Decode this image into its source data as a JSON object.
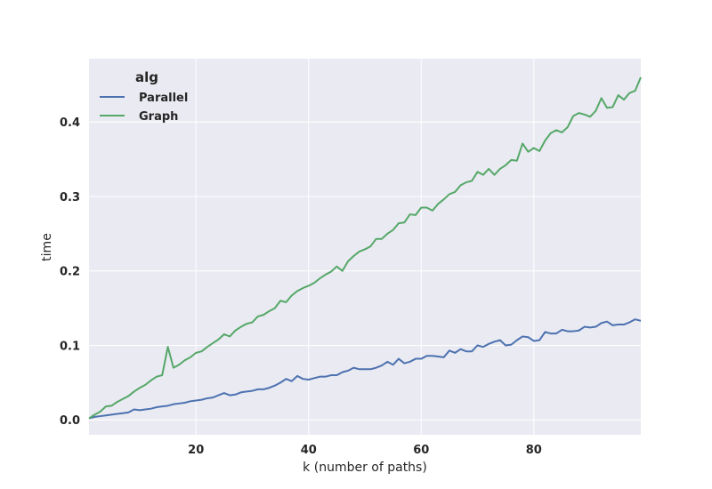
{
  "chart_data": {
    "type": "line",
    "xlabel": "k (number of paths)",
    "ylabel": "time",
    "xlim": [
      1,
      99
    ],
    "ylim": [
      -0.02,
      0.485
    ],
    "x_ticks": [
      20,
      40,
      60,
      80
    ],
    "y_ticks": [
      0.0,
      0.1,
      0.2,
      0.3,
      0.4
    ],
    "x_tick_labels": [
      "20",
      "40",
      "60",
      "80"
    ],
    "y_tick_labels": [
      "0.0",
      "0.1",
      "0.2",
      "0.3",
      "0.4"
    ],
    "grid": true,
    "legend": {
      "title": "alg",
      "placement": "top-left"
    },
    "x": [
      1,
      2,
      3,
      4,
      5,
      6,
      7,
      8,
      9,
      10,
      11,
      12,
      13,
      14,
      15,
      16,
      17,
      18,
      19,
      20,
      21,
      22,
      23,
      24,
      25,
      26,
      27,
      28,
      29,
      30,
      31,
      32,
      33,
      34,
      35,
      36,
      37,
      38,
      39,
      40,
      41,
      42,
      43,
      44,
      45,
      46,
      47,
      48,
      49,
      50,
      51,
      52,
      53,
      54,
      55,
      56,
      57,
      58,
      59,
      60,
      61,
      62,
      63,
      64,
      65,
      66,
      67,
      68,
      69,
      70,
      71,
      72,
      73,
      74,
      75,
      76,
      77,
      78,
      79,
      80,
      81,
      82,
      83,
      84,
      85,
      86,
      87,
      88,
      89,
      90,
      91,
      92,
      93,
      94,
      95,
      96,
      97,
      98,
      99
    ],
    "series": [
      {
        "name": "Parallel",
        "color": "#4c72b0",
        "values": [
          0.002,
          0.004,
          0.005,
          0.006,
          0.007,
          0.008,
          0.009,
          0.01,
          0.014,
          0.013,
          0.014,
          0.015,
          0.017,
          0.018,
          0.019,
          0.021,
          0.022,
          0.023,
          0.025,
          0.026,
          0.027,
          0.029,
          0.03,
          0.033,
          0.036,
          0.033,
          0.034,
          0.037,
          0.038,
          0.039,
          0.041,
          0.041,
          0.043,
          0.046,
          0.05,
          0.055,
          0.052,
          0.059,
          0.055,
          0.054,
          0.056,
          0.058,
          0.058,
          0.06,
          0.06,
          0.064,
          0.066,
          0.07,
          0.068,
          0.068,
          0.068,
          0.07,
          0.073,
          0.078,
          0.074,
          0.082,
          0.076,
          0.078,
          0.082,
          0.082,
          0.086,
          0.086,
          0.085,
          0.084,
          0.093,
          0.09,
          0.095,
          0.092,
          0.092,
          0.1,
          0.098,
          0.102,
          0.105,
          0.107,
          0.1,
          0.101,
          0.107,
          0.112,
          0.111,
          0.106,
          0.107,
          0.118,
          0.116,
          0.116,
          0.121,
          0.119,
          0.119,
          0.12,
          0.125,
          0.124,
          0.125,
          0.13,
          0.132,
          0.127,
          0.128,
          0.128,
          0.131,
          0.135,
          0.133
        ]
      },
      {
        "name": "Graph",
        "color": "#55a868",
        "values": [
          0.002,
          0.007,
          0.011,
          0.018,
          0.019,
          0.024,
          0.028,
          0.032,
          0.038,
          0.043,
          0.047,
          0.053,
          0.058,
          0.06,
          0.098,
          0.07,
          0.074,
          0.08,
          0.084,
          0.09,
          0.092,
          0.098,
          0.103,
          0.108,
          0.115,
          0.112,
          0.12,
          0.125,
          0.129,
          0.131,
          0.139,
          0.141,
          0.146,
          0.15,
          0.16,
          0.158,
          0.167,
          0.173,
          0.177,
          0.18,
          0.184,
          0.19,
          0.195,
          0.199,
          0.206,
          0.2,
          0.213,
          0.22,
          0.226,
          0.229,
          0.233,
          0.243,
          0.243,
          0.25,
          0.255,
          0.264,
          0.265,
          0.276,
          0.275,
          0.285,
          0.285,
          0.281,
          0.29,
          0.296,
          0.303,
          0.306,
          0.315,
          0.319,
          0.321,
          0.333,
          0.329,
          0.337,
          0.329,
          0.337,
          0.342,
          0.349,
          0.348,
          0.371,
          0.36,
          0.365,
          0.361,
          0.375,
          0.385,
          0.389,
          0.386,
          0.393,
          0.408,
          0.412,
          0.41,
          0.407,
          0.415,
          0.432,
          0.419,
          0.42,
          0.436,
          0.43,
          0.439,
          0.442,
          0.46
        ]
      }
    ]
  }
}
